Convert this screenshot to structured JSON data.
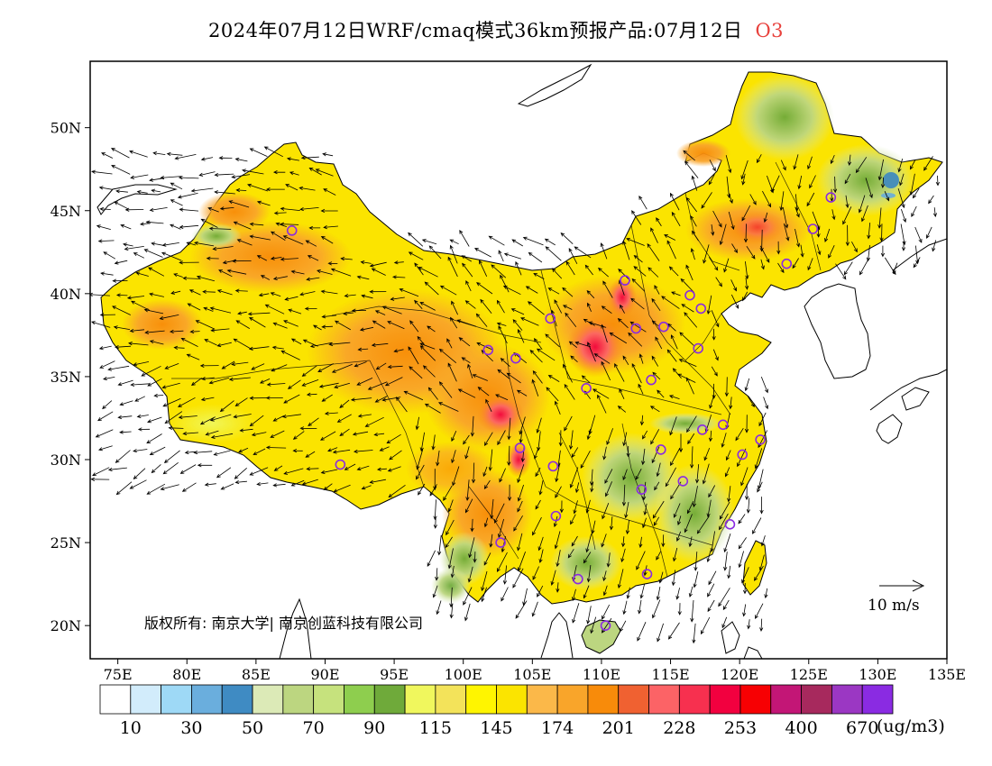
{
  "title": "2024年07月12日WRF/cmaq模式36km预报产品:07月12日",
  "pollutant": "O3",
  "copyright": "版权所有: 南京大学| 南京创蓝科技有限公司",
  "wind_legend": "10 m/s",
  "unit": "(ug/m3)",
  "lon_labels": [
    "75E",
    "80E",
    "85E",
    "90E",
    "95E",
    "100E",
    "105E",
    "110E",
    "115E",
    "120E",
    "125E",
    "130E",
    "135E"
  ],
  "lon_values": [
    75,
    80,
    85,
    90,
    95,
    100,
    105,
    110,
    115,
    120,
    125,
    130,
    135
  ],
  "lat_labels": [
    "20N",
    "25N",
    "30N",
    "35N",
    "40N",
    "45N",
    "50N"
  ],
  "lat_values": [
    20,
    25,
    30,
    35,
    40,
    45,
    50
  ],
  "colorbar": {
    "colors": [
      "#ffffff",
      "#d2ecfb",
      "#9ed9f6",
      "#6aaedd",
      "#3f8bc3",
      "#dceab7",
      "#bcd680",
      "#c6e27d",
      "#8ece4e",
      "#6faa3a",
      "#f0f75d",
      "#f3e35a",
      "#fff500",
      "#fbe400",
      "#fbb849",
      "#f9a52a",
      "#f88b0a",
      "#f06131",
      "#fc6366",
      "#f7304f",
      "#f2003f",
      "#f70003",
      "#c31676",
      "#a7295d",
      "#9b37c3",
      "#8a2be2"
    ],
    "labels": [
      "10",
      "30",
      "50",
      "70",
      "90",
      "115",
      "145",
      "174",
      "201",
      "228",
      "253",
      "400",
      "670"
    ]
  },
  "stations": [
    {
      "lon": 87.6,
      "lat": 43.8
    },
    {
      "lon": 91.1,
      "lat": 29.7
    },
    {
      "lon": 101.8,
      "lat": 36.6
    },
    {
      "lon": 103.8,
      "lat": 36.1
    },
    {
      "lon": 106.3,
      "lat": 38.5
    },
    {
      "lon": 111.7,
      "lat": 40.8
    },
    {
      "lon": 112.5,
      "lat": 37.9
    },
    {
      "lon": 114.5,
      "lat": 38.0
    },
    {
      "lon": 116.4,
      "lat": 39.9
    },
    {
      "lon": 117.2,
      "lat": 39.1
    },
    {
      "lon": 117.0,
      "lat": 36.7
    },
    {
      "lon": 113.6,
      "lat": 34.8
    },
    {
      "lon": 108.9,
      "lat": 34.3
    },
    {
      "lon": 104.1,
      "lat": 30.7
    },
    {
      "lon": 106.5,
      "lat": 29.6
    },
    {
      "lon": 102.7,
      "lat": 25.0
    },
    {
      "lon": 106.7,
      "lat": 26.6
    },
    {
      "lon": 108.3,
      "lat": 22.8
    },
    {
      "lon": 113.3,
      "lat": 23.1
    },
    {
      "lon": 110.3,
      "lat": 20.0
    },
    {
      "lon": 112.9,
      "lat": 28.2
    },
    {
      "lon": 114.3,
      "lat": 30.6
    },
    {
      "lon": 115.9,
      "lat": 28.7
    },
    {
      "lon": 117.3,
      "lat": 31.8
    },
    {
      "lon": 118.8,
      "lat": 32.1
    },
    {
      "lon": 120.2,
      "lat": 30.3
    },
    {
      "lon": 121.5,
      "lat": 31.2
    },
    {
      "lon": 119.3,
      "lat": 26.1
    },
    {
      "lon": 123.4,
      "lat": 41.8
    },
    {
      "lon": 125.3,
      "lat": 43.9
    },
    {
      "lon": 126.6,
      "lat": 45.8
    }
  ]
}
